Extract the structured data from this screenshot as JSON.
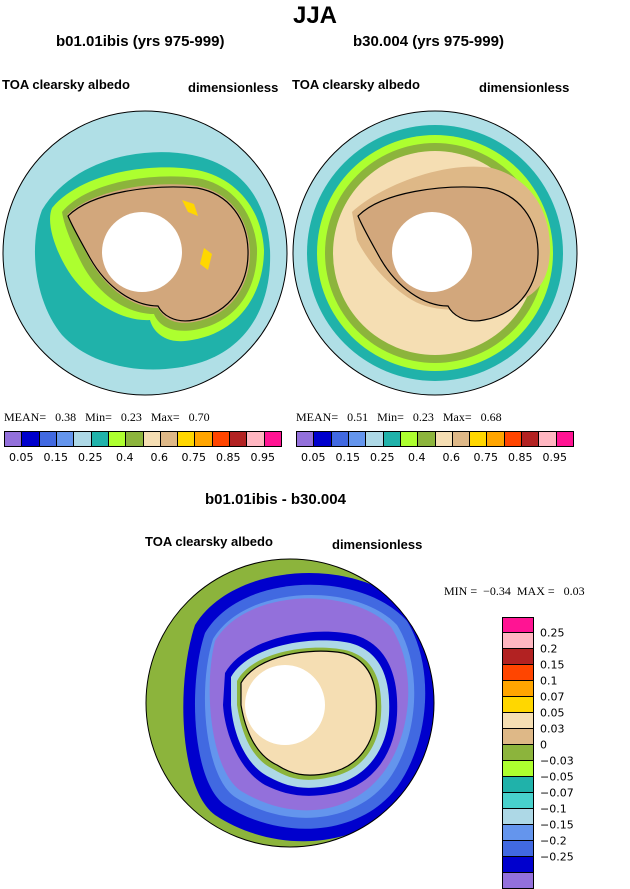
{
  "title": "JJA",
  "panel_left": {
    "subtitle": "b01.01ibis (yrs 975-999)",
    "variable": "TOA clearsky albedo",
    "units": "dimensionless",
    "stats": {
      "mean_label": "MEAN=",
      "mean": "0.38",
      "min_label": "Min=",
      "min": "0.23",
      "max_label": "Max=",
      "max": "0.70"
    }
  },
  "panel_right": {
    "subtitle": "b30.004 (yrs 975-999)",
    "variable": "TOA clearsky albedo",
    "units": "dimensionless",
    "stats": {
      "mean_label": "MEAN=",
      "mean": "0.51",
      "min_label": "Min=",
      "min": "0.23",
      "max_label": "Max=",
      "max": "0.68"
    }
  },
  "panel_diff": {
    "subtitle": "b01.01ibis - b30.004",
    "variable": "TOA clearsky albedo",
    "units": "dimensionless",
    "stats": {
      "min_label": "MIN =",
      "min": "−0.34",
      "max_label": "MAX =",
      "max": "0.03"
    }
  },
  "colorbar_abs": {
    "colors": [
      "#9370db",
      "#0000cd",
      "#4169e1",
      "#6495ed",
      "#add8e6",
      "#20b2aa",
      "#adff2f",
      "#8cb43c",
      "#f5deb3",
      "#deb887",
      "#ffd700",
      "#ffa500",
      "#ff4500",
      "#b22222",
      "#ffb6c1",
      "#ff1493"
    ],
    "labels": [
      "0.05",
      "0.15",
      "0.25",
      "0.4",
      "0.6",
      "0.75",
      "0.85",
      "0.95"
    ]
  },
  "colorbar_diff": {
    "colors": [
      "#ff1493",
      "#ffb6c1",
      "#b22222",
      "#ff4500",
      "#ffa500",
      "#ffd700",
      "#f5deb3",
      "#deb887",
      "#8cb43c",
      "#adff2f",
      "#20b2aa",
      "#48d1cc",
      "#add8e6",
      "#6495ed",
      "#4169e1",
      "#0000cd",
      "#9370db"
    ],
    "labels": [
      "0.25",
      "0.2",
      "0.15",
      "0.1",
      "0.07",
      "0.05",
      "0.03",
      "0",
      "−0.03",
      "−0.05",
      "−0.07",
      "−0.1",
      "−0.15",
      "−0.2",
      "−0.25"
    ]
  },
  "map_colors": {
    "ocean_light": "#b0dfe6",
    "teal": "#20b2aa",
    "green_light": "#adff2f",
    "green_dark": "#8cb43c",
    "cream": "#f5deb3",
    "tan": "#d2a77c",
    "yellow": "#ffd700",
    "purple": "#9370db",
    "blue_dark": "#0000cd",
    "blue_mid": "#4169e1",
    "blue_light": "#6495ed"
  }
}
